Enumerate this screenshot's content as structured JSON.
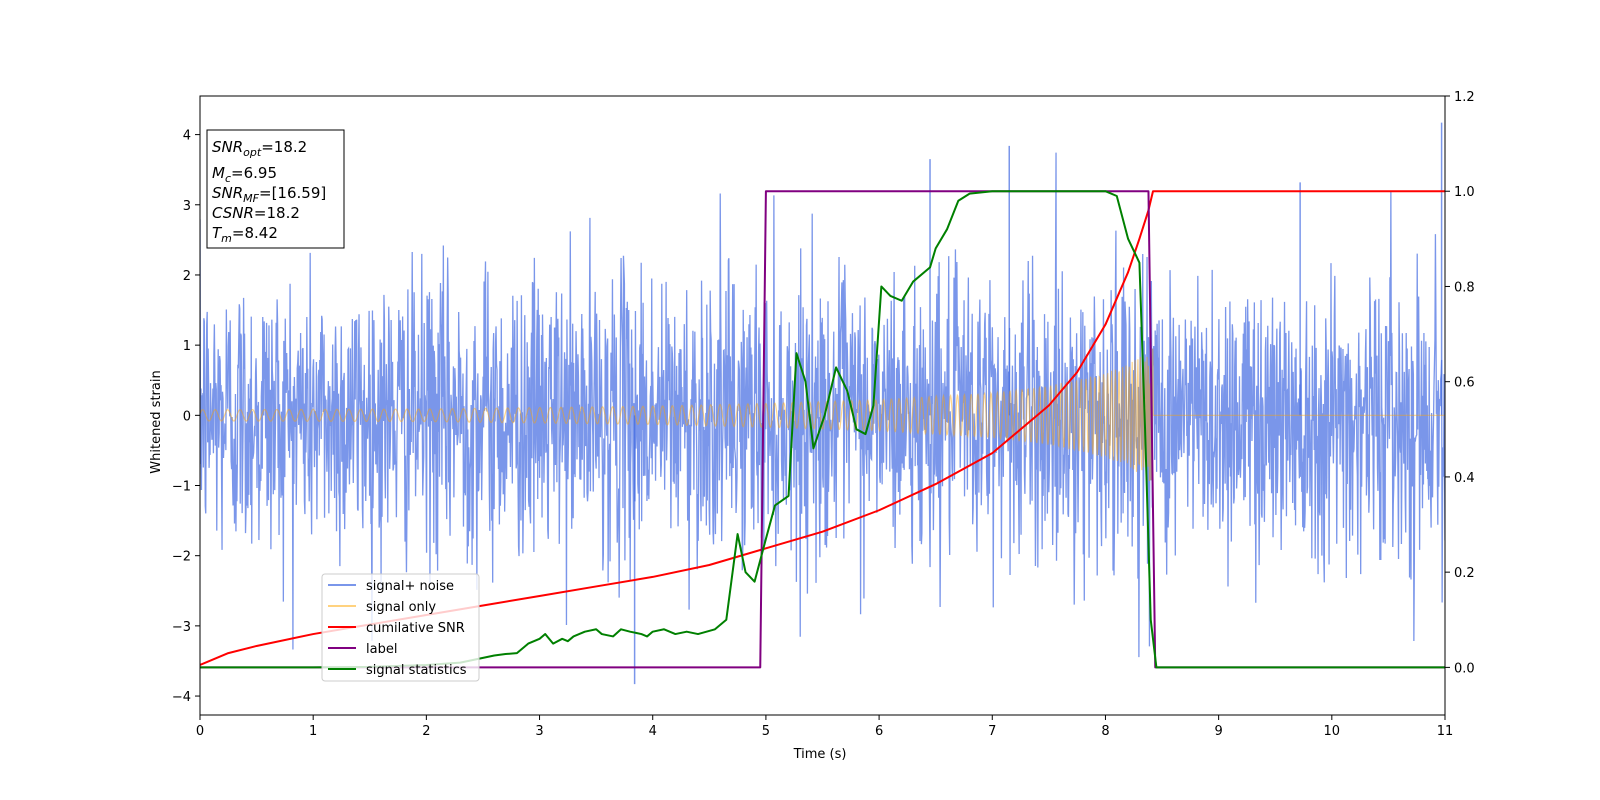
{
  "chart_data": {
    "type": "line",
    "xlabel": "Time (s)",
    "ylabel": "Whitened strain",
    "xlim": [
      0,
      11
    ],
    "ylim": [
      -4.27,
      4.55
    ],
    "y2lim": [
      -0.1,
      1.2
    ],
    "x_ticks": [
      "0",
      "1",
      "2",
      "3",
      "4",
      "5",
      "6",
      "7",
      "8",
      "9",
      "10",
      "11"
    ],
    "y_ticks": [
      "−4",
      "−3",
      "−2",
      "−1",
      "0",
      "1",
      "2",
      "3",
      "4"
    ],
    "y2_ticks": [
      "0.0",
      "0.2",
      "0.4",
      "0.6",
      "0.8",
      "1.0",
      "1.2"
    ],
    "grid": false,
    "legend_position": "lower-left",
    "annotation": {
      "snr_opt": {
        "var": "SNR",
        "sub": "opt",
        "value": "=18.2"
      },
      "mc": {
        "var": "M",
        "sub": "c",
        "value": "=6.95"
      },
      "snr_mf": {
        "var": "SNR",
        "sub": "MF",
        "value": "=[16.59]"
      },
      "csnr": {
        "var": "CSNR",
        "value": "=18.2"
      },
      "tm": {
        "var": "T",
        "sub": "m",
        "value": "=8.42"
      }
    },
    "series": [
      {
        "name": "signal+ noise",
        "color": "#4169e1",
        "axis": "left",
        "kind": "noise",
        "std": 1.0,
        "x_range": [
          0,
          11
        ],
        "notable_peaks": [
          [
            3.84,
            -3.83
          ],
          [
            6.45,
            3.65
          ],
          [
            7.15,
            3.84
          ],
          [
            10.97,
            4.17
          ],
          [
            9.72,
            3.32
          ]
        ]
      },
      {
        "name": "signal only",
        "color": "#ffa500",
        "axis": "left",
        "kind": "chirp",
        "envelope": [
          [
            0,
            0.08
          ],
          [
            2,
            0.09
          ],
          [
            4,
            0.13
          ],
          [
            5,
            0.17
          ],
          [
            6,
            0.22
          ],
          [
            7,
            0.32
          ],
          [
            7.5,
            0.42
          ],
          [
            8,
            0.6
          ],
          [
            8.2,
            0.72
          ],
          [
            8.4,
            0.95
          ]
        ],
        "end_x": 8.42
      },
      {
        "name": "cumilative SNR",
        "color": "#ff0000",
        "axis": "right",
        "points": [
          [
            0,
            0.005
          ],
          [
            0.25,
            0.03
          ],
          [
            0.5,
            0.045
          ],
          [
            1,
            0.07
          ],
          [
            1.5,
            0.09
          ],
          [
            2,
            0.11
          ],
          [
            2.5,
            0.13
          ],
          [
            3,
            0.15
          ],
          [
            3.5,
            0.17
          ],
          [
            4,
            0.19
          ],
          [
            4.5,
            0.215
          ],
          [
            5,
            0.25
          ],
          [
            5.5,
            0.285
          ],
          [
            6,
            0.33
          ],
          [
            6.5,
            0.385
          ],
          [
            7,
            0.45
          ],
          [
            7.5,
            0.55
          ],
          [
            7.75,
            0.62
          ],
          [
            8,
            0.72
          ],
          [
            8.2,
            0.83
          ],
          [
            8.3,
            0.9
          ],
          [
            8.38,
            0.96
          ],
          [
            8.42,
            1.0
          ],
          [
            11,
            1.0
          ]
        ]
      },
      {
        "name": "label",
        "color": "#800080",
        "axis": "right",
        "points": [
          [
            0,
            0
          ],
          [
            4.95,
            0
          ],
          [
            5.0,
            1.0
          ],
          [
            8.38,
            1.0
          ],
          [
            8.44,
            0
          ],
          [
            11,
            0
          ]
        ]
      },
      {
        "name": "signal statistics",
        "color": "#008000",
        "axis": "right",
        "points": [
          [
            0,
            0
          ],
          [
            1,
            0
          ],
          [
            1.5,
            0.001
          ],
          [
            2,
            0.005
          ],
          [
            2.3,
            0.01
          ],
          [
            2.5,
            0.02
          ],
          [
            2.6,
            0.025
          ],
          [
            2.7,
            0.028
          ],
          [
            2.8,
            0.03
          ],
          [
            2.9,
            0.05
          ],
          [
            3.0,
            0.06
          ],
          [
            3.05,
            0.07
          ],
          [
            3.12,
            0.05
          ],
          [
            3.2,
            0.06
          ],
          [
            3.25,
            0.055
          ],
          [
            3.3,
            0.065
          ],
          [
            3.4,
            0.075
          ],
          [
            3.5,
            0.08
          ],
          [
            3.55,
            0.07
          ],
          [
            3.65,
            0.065
          ],
          [
            3.72,
            0.08
          ],
          [
            3.8,
            0.075
          ],
          [
            3.9,
            0.07
          ],
          [
            3.95,
            0.065
          ],
          [
            4.0,
            0.075
          ],
          [
            4.1,
            0.08
          ],
          [
            4.2,
            0.07
          ],
          [
            4.3,
            0.075
          ],
          [
            4.4,
            0.07
          ],
          [
            4.55,
            0.08
          ],
          [
            4.65,
            0.1
          ],
          [
            4.75,
            0.28
          ],
          [
            4.82,
            0.2
          ],
          [
            4.9,
            0.18
          ],
          [
            5.0,
            0.27
          ],
          [
            5.08,
            0.34
          ],
          [
            5.2,
            0.36
          ],
          [
            5.27,
            0.66
          ],
          [
            5.35,
            0.6
          ],
          [
            5.42,
            0.46
          ],
          [
            5.52,
            0.53
          ],
          [
            5.62,
            0.63
          ],
          [
            5.72,
            0.58
          ],
          [
            5.8,
            0.5
          ],
          [
            5.88,
            0.49
          ],
          [
            5.95,
            0.55
          ],
          [
            6.02,
            0.8
          ],
          [
            6.1,
            0.78
          ],
          [
            6.2,
            0.77
          ],
          [
            6.3,
            0.81
          ],
          [
            6.45,
            0.84
          ],
          [
            6.5,
            0.88
          ],
          [
            6.6,
            0.92
          ],
          [
            6.7,
            0.98
          ],
          [
            6.8,
            0.995
          ],
          [
            7.0,
            1.0
          ],
          [
            7.5,
            1.0
          ],
          [
            8.0,
            1.0
          ],
          [
            8.1,
            0.99
          ],
          [
            8.2,
            0.9
          ],
          [
            8.3,
            0.85
          ],
          [
            8.35,
            0.5
          ],
          [
            8.4,
            0.1
          ],
          [
            8.45,
            0
          ],
          [
            11,
            0
          ]
        ]
      }
    ]
  }
}
